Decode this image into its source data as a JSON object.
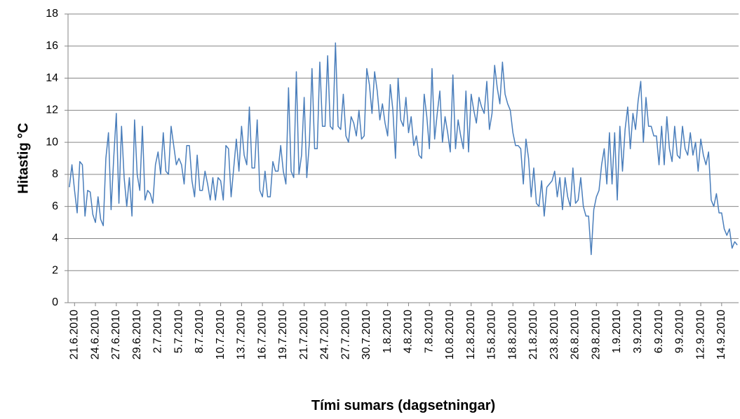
{
  "chart_data": {
    "type": "line",
    "x_label": "Tími sumars (dagsetningar)",
    "y_label": "Hitastig °C",
    "categories": [
      null,
      null,
      "21.6.2010",
      null,
      null,
      null,
      null,
      null,
      null,
      null,
      "24.6.2010",
      null,
      null,
      null,
      null,
      null,
      null,
      null,
      "27.6.2010",
      null,
      null,
      null,
      null,
      null,
      null,
      null,
      "29.6.2010",
      null,
      null,
      null,
      null,
      null,
      null,
      null,
      "2.7.2010",
      null,
      null,
      null,
      null,
      null,
      null,
      null,
      "5.7.2010",
      null,
      null,
      null,
      null,
      null,
      null,
      null,
      "8.7.2010",
      null,
      null,
      null,
      null,
      null,
      null,
      null,
      "10.7.2010",
      null,
      null,
      null,
      null,
      null,
      null,
      null,
      "13.7.2010",
      null,
      null,
      null,
      null,
      null,
      null,
      null,
      "16.7.2010",
      null,
      null,
      null,
      null,
      null,
      null,
      null,
      "19.7.2010",
      null,
      null,
      null,
      null,
      null,
      null,
      null,
      "21.7.2010",
      null,
      null,
      null,
      null,
      null,
      null,
      null,
      "24.7.2010",
      null,
      null,
      null,
      null,
      null,
      null,
      null,
      "27.7.2010",
      null,
      null,
      null,
      null,
      null,
      null,
      null,
      "30.7.2010",
      null,
      null,
      null,
      null,
      null,
      null,
      null,
      "1.8.2010",
      null,
      null,
      null,
      null,
      null,
      null,
      null,
      "4.8.2010",
      null,
      null,
      null,
      null,
      null,
      null,
      null,
      "7.8.2010",
      null,
      null,
      null,
      null,
      null,
      null,
      null,
      "10.8.2010",
      null,
      null,
      null,
      null,
      null,
      null,
      null,
      "12.8.2010",
      null,
      null,
      null,
      null,
      null,
      null,
      null,
      "15.8.2010",
      null,
      null,
      null,
      null,
      null,
      null,
      null,
      "18.8.2010",
      null,
      null,
      null,
      null,
      null,
      null,
      null,
      "21.8.2010",
      null,
      null,
      null,
      null,
      null,
      null,
      null,
      "23.8.2010",
      null,
      null,
      null,
      null,
      null,
      null,
      null,
      "26.8.2010",
      null,
      null,
      null,
      null,
      null,
      null,
      null,
      "29.8.2010",
      null,
      null,
      null,
      null,
      null,
      null,
      null,
      "1.9.2010",
      null,
      null,
      null,
      null,
      null,
      null,
      null,
      "3.9.2010",
      null,
      null,
      null,
      null,
      null,
      null,
      null,
      "6.9.2010",
      null,
      null,
      null,
      null,
      null,
      null,
      null,
      "9.9.2010",
      null,
      null,
      null,
      null,
      null,
      null,
      null,
      "12.9.2010",
      null,
      null,
      null,
      null,
      null,
      null,
      null,
      "14.9.2010",
      null,
      null,
      null,
      null,
      null,
      null
    ],
    "values": [
      7.2,
      8.6,
      7,
      5.6,
      8.8,
      8.6,
      5.4,
      7,
      6.9,
      5.5,
      5,
      6.6,
      5.2,
      4.8,
      9,
      10.6,
      5.8,
      9,
      11.8,
      6.2,
      11,
      7.8,
      6,
      7.8,
      5.4,
      11.4,
      8,
      7,
      11,
      6.4,
      7,
      6.8,
      6.2,
      8.6,
      9.4,
      8,
      10.6,
      8.2,
      8,
      11,
      9.8,
      8.6,
      9,
      8.6,
      7.4,
      9.8,
      9.8,
      7.6,
      6.6,
      9.2,
      7,
      7,
      8.2,
      7.4,
      6.4,
      7.8,
      6.4,
      7.8,
      7.6,
      6.4,
      9.8,
      9.6,
      6.6,
      8.4,
      10.2,
      8.2,
      11,
      9.2,
      8.6,
      12.2,
      8.4,
      8.4,
      11.4,
      7,
      6.6,
      8.2,
      6.6,
      6.6,
      8.8,
      8.2,
      8.2,
      9.8,
      8.2,
      7.4,
      13.4,
      8.2,
      7.8,
      14.4,
      8,
      9.2,
      12.8,
      7.8,
      10,
      14.6,
      9.6,
      9.6,
      15,
      11,
      11,
      15.4,
      11,
      10.8,
      16.2,
      11,
      10.8,
      13,
      10.4,
      10,
      11.6,
      11.2,
      10.4,
      12,
      10.2,
      10.4,
      14.6,
      13.6,
      11.8,
      14.4,
      13.2,
      11.4,
      12.4,
      11.2,
      10.4,
      13.6,
      12,
      9,
      14,
      11.4,
      11,
      12.8,
      10.6,
      11.6,
      9.8,
      10.4,
      9.2,
      9,
      13,
      11.6,
      9.6,
      14.6,
      10.2,
      11.8,
      13.2,
      10,
      11.6,
      10.6,
      9.4,
      14.2,
      9.6,
      11.4,
      10.4,
      9.6,
      13.2,
      9.4,
      13,
      12,
      11.2,
      12.8,
      12.2,
      11.8,
      13.8,
      10.8,
      11.8,
      14.8,
      13.4,
      12.4,
      15,
      13,
      12.4,
      12,
      10.6,
      9.8,
      9.8,
      9.6,
      7.4,
      10.2,
      9,
      6.6,
      8.4,
      6.2,
      6,
      7.6,
      5.4,
      7.2,
      7.4,
      7.6,
      8.2,
      6.6,
      7.8,
      5.8,
      7.8,
      6.6,
      6,
      8.4,
      6.2,
      6.4,
      7.8,
      6,
      5.4,
      5.4,
      3,
      5.8,
      6.6,
      7,
      8.6,
      9.6,
      7.4,
      10.6,
      7.4,
      10.6,
      6.4,
      11,
      8.2,
      10.8,
      12.2,
      9.6,
      11.8,
      10.8,
      12.6,
      13.8,
      10,
      12.8,
      11,
      11,
      10.4,
      10.4,
      8.6,
      11,
      8.6,
      11.6,
      9.6,
      8.8,
      11,
      9.2,
      9,
      11,
      9.6,
      9.2,
      10.6,
      9.2,
      10,
      8.2,
      10.2,
      9.2,
      8.6,
      9.4,
      6.4,
      6,
      6.8,
      5.6,
      5.6,
      4.6,
      4.2,
      4.6,
      3.4,
      3.8,
      3.6
    ],
    "color": "#4a7ebb",
    "ylim": [
      0,
      18
    ],
    "yticks": [
      0,
      2,
      4,
      6,
      8,
      10,
      12,
      14,
      16,
      18
    ],
    "grid": true
  }
}
